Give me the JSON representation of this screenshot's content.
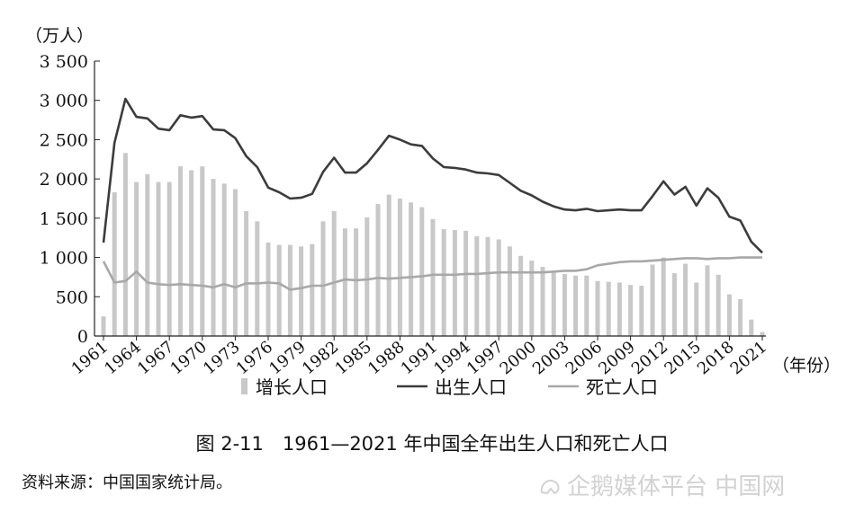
{
  "chart_data": {
    "type": "bar+line",
    "unit_label": "（万人）",
    "x_axis_suffix": "（年份）",
    "ylim": [
      0,
      3500
    ],
    "y_ticks": [
      0,
      500,
      1000,
      1500,
      2000,
      2500,
      3000,
      3500
    ],
    "y_tick_labels": [
      "0",
      "500",
      "1 000",
      "1 500",
      "2 000",
      "2 500",
      "3 000",
      "3 500"
    ],
    "x_tick_labels": [
      "1961",
      "1964",
      "1967",
      "1970",
      "1973",
      "1976",
      "1979",
      "1982",
      "1985",
      "1988",
      "1991",
      "1994",
      "1997",
      "2000",
      "2003",
      "2006",
      "2009",
      "2012",
      "2015",
      "2018",
      "2021"
    ],
    "years": [
      1961,
      1962,
      1963,
      1964,
      1965,
      1966,
      1967,
      1968,
      1969,
      1970,
      1971,
      1972,
      1973,
      1974,
      1975,
      1976,
      1977,
      1978,
      1979,
      1980,
      1981,
      1982,
      1983,
      1984,
      1985,
      1986,
      1987,
      1988,
      1989,
      1990,
      1991,
      1992,
      1993,
      1994,
      1995,
      1996,
      1997,
      1998,
      1999,
      2000,
      2001,
      2002,
      2003,
      2004,
      2005,
      2006,
      2007,
      2008,
      2009,
      2010,
      2011,
      2012,
      2013,
      2014,
      2015,
      2016,
      2017,
      2018,
      2019,
      2020,
      2021
    ],
    "series": [
      {
        "name": "增长人口",
        "kind": "bar",
        "color": "#c8c8c8",
        "values": [
          250,
          1830,
          2330,
          1960,
          2060,
          1960,
          1960,
          2160,
          2110,
          2160,
          2000,
          1940,
          1870,
          1590,
          1460,
          1190,
          1160,
          1160,
          1140,
          1170,
          1460,
          1590,
          1370,
          1370,
          1510,
          1680,
          1800,
          1750,
          1700,
          1640,
          1490,
          1360,
          1350,
          1340,
          1270,
          1260,
          1230,
          1140,
          1020,
          960,
          880,
          830,
          790,
          770,
          770,
          700,
          690,
          680,
          650,
          640,
          910,
          1000,
          800,
          920,
          680,
          900,
          780,
          530,
          470,
          210,
          50
        ]
      },
      {
        "name": "出生人口",
        "kind": "line",
        "color": "#3c3c3c",
        "values": [
          1190,
          2460,
          3020,
          2790,
          2770,
          2640,
          2620,
          2810,
          2780,
          2800,
          2630,
          2620,
          2520,
          2290,
          2150,
          1890,
          1830,
          1750,
          1760,
          1810,
          2090,
          2270,
          2080,
          2080,
          2200,
          2370,
          2550,
          2500,
          2440,
          2420,
          2260,
          2150,
          2140,
          2120,
          2080,
          2070,
          2050,
          1950,
          1850,
          1790,
          1710,
          1650,
          1610,
          1600,
          1620,
          1590,
          1600,
          1610,
          1600,
          1600,
          1780,
          1970,
          1800,
          1900,
          1660,
          1880,
          1760,
          1520,
          1470,
          1200,
          1060
        ]
      },
      {
        "name": "死亡人口",
        "kind": "line",
        "color": "#a8a8a8",
        "values": [
          950,
          680,
          700,
          820,
          680,
          660,
          650,
          660,
          650,
          640,
          620,
          660,
          620,
          670,
          670,
          680,
          670,
          590,
          610,
          640,
          640,
          680,
          720,
          710,
          720,
          740,
          730,
          740,
          750,
          760,
          780,
          780,
          780,
          790,
          790,
          800,
          810,
          810,
          810,
          810,
          810,
          820,
          830,
          830,
          850,
          900,
          920,
          940,
          950,
          950,
          960,
          970,
          980,
          990,
          990,
          980,
          990,
          990,
          1000,
          1000,
          1000
        ]
      }
    ]
  },
  "caption": "图 2-11　1961—2021 年中国全年出生人口和死亡人口",
  "source": "资料来源：中国国家统计局。",
  "watermark": "企鹅媒体平台 中国网"
}
